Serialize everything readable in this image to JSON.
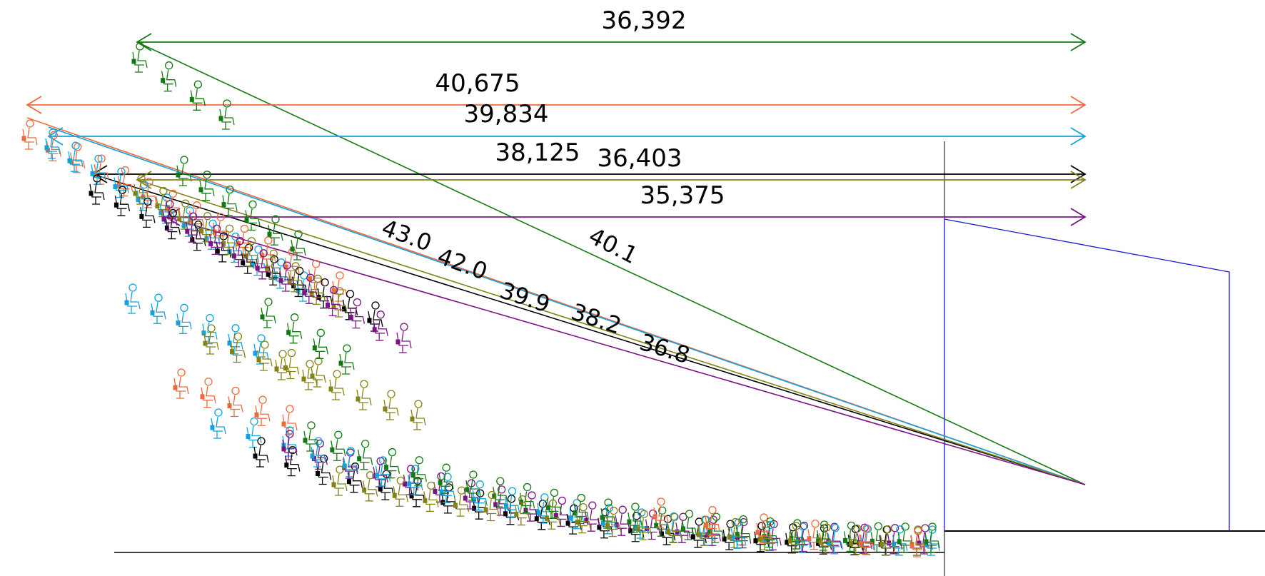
{
  "colors": {
    "green": "#137a13",
    "orange": "#ee6a3e",
    "cyan": "#12a3dc",
    "black": "#000000",
    "olive": "#848217",
    "purple": "#7b1483",
    "blue": "#1a1ad6",
    "ground": "#000000"
  },
  "schemes": [
    {
      "key": "green",
      "color": "#137a13",
      "distance_label": "36,392",
      "angle_label": "40.1"
    },
    {
      "key": "orange",
      "color": "#ee6a3e",
      "distance_label": "40,675",
      "angle_label": "43.0"
    },
    {
      "key": "cyan",
      "color": "#12a3dc",
      "distance_label": "39,834",
      "angle_label": "42.0"
    },
    {
      "key": "black",
      "color": "#000000",
      "distance_label": "38,125",
      "angle_label": "39.9"
    },
    {
      "key": "olive",
      "color": "#848217",
      "distance_label": "36,403",
      "angle_label": "38.2"
    },
    {
      "key": "purple",
      "color": "#7b1483",
      "distance_label": "35,375",
      "angle_label": "36.8"
    }
  ],
  "icons": {
    "seat": "seated-person-icon"
  }
}
